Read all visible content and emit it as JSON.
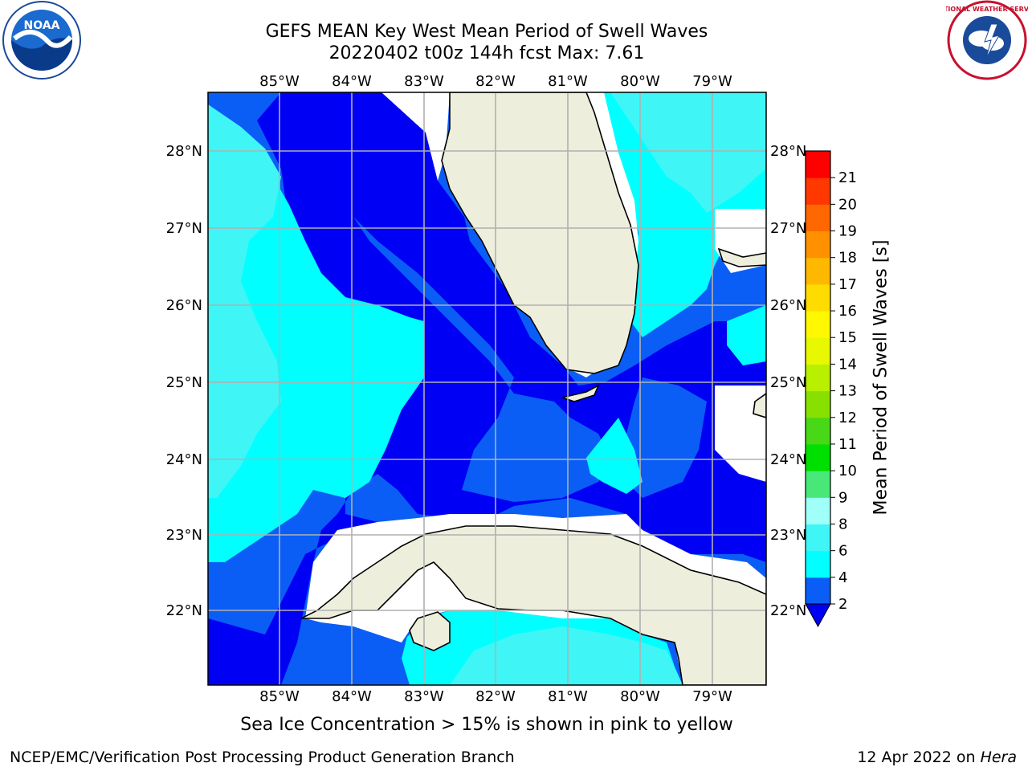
{
  "title": {
    "line1": "GEFS MEAN Key West Mean Period of Swell Waves",
    "line2": "20220402 t00z 144h fcst   Max: 7.61"
  },
  "logos": {
    "left": "noaa-logo",
    "right": "nws-logo",
    "left_text": "NOAA",
    "right_text": "NATIONAL WEATHER SERVICE"
  },
  "axes": {
    "lon_ticks": [
      "85°W",
      "84°W",
      "83°W",
      "82°W",
      "81°W",
      "80°W",
      "79°W"
    ],
    "lat_ticks": [
      "28°N",
      "27°N",
      "26°N",
      "25°N",
      "24°N",
      "23°N",
      "22°N"
    ],
    "lon_range": [
      -86,
      -78.3
    ],
    "lat_range": [
      21.1,
      28.8
    ]
  },
  "colorbar": {
    "label": "Mean Period of Swell Waves [s]",
    "ticks": [
      "2",
      "4",
      "6",
      "8",
      "9",
      "10",
      "11",
      "12",
      "13",
      "14",
      "15",
      "16",
      "17",
      "18",
      "19",
      "20",
      "21"
    ],
    "colors": [
      "#0a5ef5",
      "#00ffff",
      "#40f5f5",
      "#a0fff8",
      "#48e878",
      "#00e000",
      "#48d818",
      "#88e000",
      "#b8f000",
      "#e8f800",
      "#fff800",
      "#ffdc00",
      "#ffb800",
      "#ff9000",
      "#ff6800",
      "#ff3800",
      "#ff0000"
    ],
    "under_color": "#0000f5"
  },
  "field_colors": {
    "very_low": "#0000f5",
    "low": "#0a5ef5",
    "mid": "#00ffff",
    "high": "#40f5f5",
    "land": "#eeeedd"
  },
  "subtitle": "Sea Ice Concentration > 15% is shown in pink to yellow",
  "footer": {
    "left": "NCEP/EMC/Verification Post Processing Product Generation Branch",
    "right_date": "12 Apr 2022 on ",
    "right_host": "Hera"
  }
}
